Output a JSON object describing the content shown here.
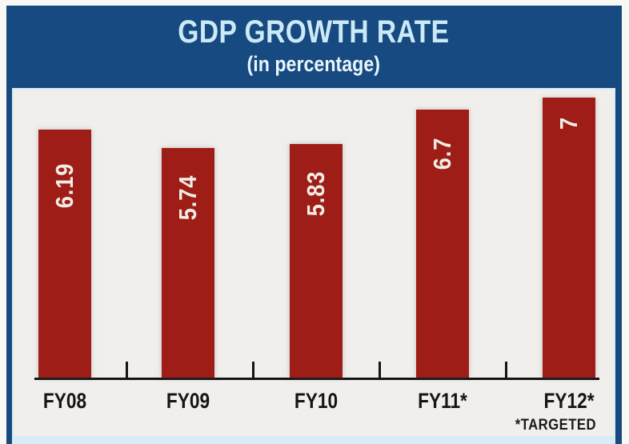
{
  "header": {
    "title": "GDP GROWTH RATE",
    "subtitle": "(in percentage)"
  },
  "footnote": "*TARGETED",
  "colors": {
    "header_bg": "#164a80",
    "frame_border": "#164a80",
    "bar": "#9e1e17",
    "plot_bg": "#f1efec",
    "title_text": "#cbe9f7",
    "subtitle_text": "#e8f5fc",
    "value_text": "#f2ede4",
    "axis": "#141414",
    "footer_strip": "#d9ecf5"
  },
  "chart_data": {
    "type": "bar",
    "title": "GDP GROWTH RATE",
    "subtitle": "(in percentage)",
    "categories": [
      "FY08",
      "FY09",
      "FY10",
      "FY11*",
      "FY12*"
    ],
    "values": [
      6.19,
      5.74,
      5.83,
      6.7,
      7
    ],
    "value_labels": [
      "6.19",
      "5.74",
      "5.83",
      "6.7",
      "7"
    ],
    "xlabel": "",
    "ylabel": "",
    "ylim": [
      0,
      7.2
    ],
    "grid": false,
    "legend": false,
    "footnote": "*TARGETED",
    "bar_color": "#9e1e17",
    "value_label_rotation": -90,
    "tick_position": "between-bars"
  }
}
